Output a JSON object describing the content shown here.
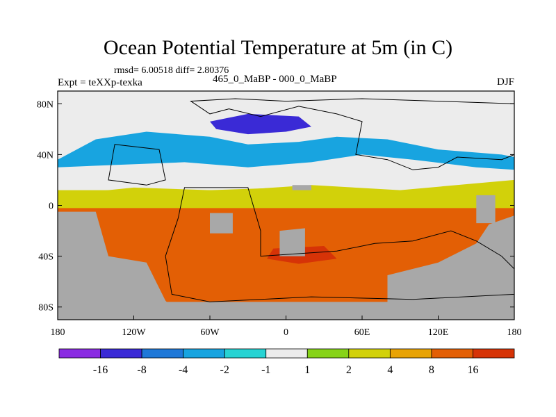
{
  "chart_data": {
    "type": "heatmap",
    "title": "Ocean Potential Temperature at 5m (in C)",
    "stats_text": "rmsd= 6.00518 diff= 2.80376",
    "left_subtitle": "Expt = teXXp-texka",
    "center_subtitle": "465_0_MaBP - 000_0_MaBP",
    "right_subtitle": "DJF",
    "x_axis": {
      "range": [
        -180,
        180
      ],
      "ticks": [
        -180,
        -120,
        -60,
        0,
        60,
        120,
        180
      ],
      "tick_labels": [
        "180",
        "120W",
        "60W",
        "0",
        "60E",
        "120E",
        "180"
      ]
    },
    "y_axis": {
      "range": [
        -90,
        90
      ],
      "ticks": [
        80,
        40,
        0,
        -40,
        -80
      ],
      "tick_labels": [
        "80N",
        "40N",
        "0",
        "40S",
        "80S"
      ]
    },
    "colorbar": {
      "labels": [
        "-16",
        "-8",
        "-4",
        "-2",
        "-1",
        "1",
        "2",
        "4",
        "8",
        "16"
      ],
      "colors": [
        "#8a2be2",
        "#3a2ad6",
        "#1f78d8",
        "#18a4e0",
        "#27d3d3",
        "#ececec",
        "#86d318",
        "#d2d10a",
        "#e8a305",
        "#e35f05",
        "#d63307"
      ]
    },
    "land_color": "#a8a8a8",
    "ocean_regions": [
      {
        "name": "northern-ice-band",
        "value": 0
      },
      {
        "name": "north-cold-pool",
        "value": -10
      },
      {
        "name": "northern-mid-latitude-belt",
        "value": -3
      },
      {
        "name": "northern-transition-band",
        "value": 2
      },
      {
        "name": "equatorial-belt",
        "value": 3
      },
      {
        "name": "southern-warm-ocean",
        "value": 12
      },
      {
        "name": "south-hot-core",
        "value": 18
      }
    ]
  }
}
